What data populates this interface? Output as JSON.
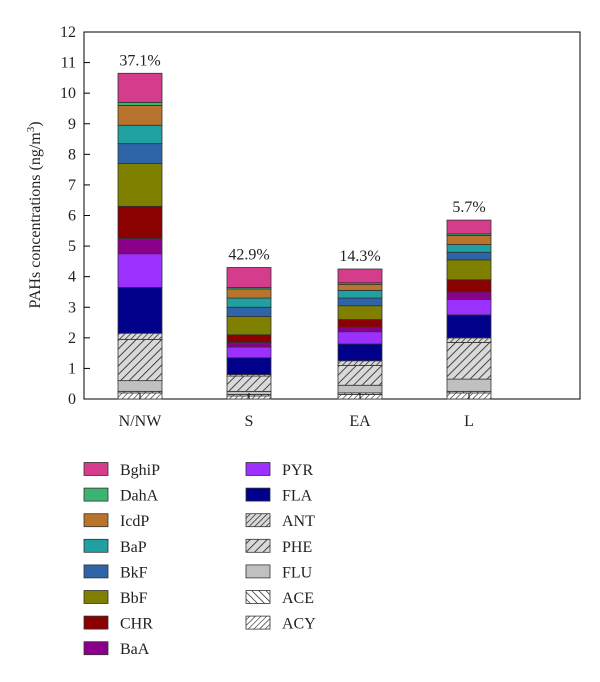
{
  "chart_data": {
    "type": "bar",
    "stacked": true,
    "ylabel": "PAHs concentrations (ng/m",
    "ylabel_sup": "3",
    "ylabel_close": ")",
    "ylim": [
      0,
      12
    ],
    "yticks": [
      "0",
      "1",
      "2",
      "3",
      "4",
      "5",
      "6",
      "7",
      "8",
      "9",
      "10",
      "11",
      "12"
    ],
    "categories": [
      "N/NW",
      "S",
      "EA",
      "L"
    ],
    "percent_labels": [
      "37.1%",
      "42.9%",
      "14.3%",
      "5.7%"
    ],
    "grid": false,
    "legend_position": "bottom",
    "series": [
      {
        "name": "ACY",
        "color": "#ffffff",
        "pattern": "fine-diag",
        "values": [
          0.2,
          0.1,
          0.15,
          0.2
        ]
      },
      {
        "name": "ACE",
        "color": "#ffffff",
        "pattern": "back-diag",
        "values": [
          0.05,
          0.05,
          0.05,
          0.05
        ]
      },
      {
        "name": "FLU",
        "color": "#c0c0c0",
        "pattern": "solid",
        "values": [
          0.35,
          0.1,
          0.25,
          0.4
        ]
      },
      {
        "name": "PHE",
        "color": "#d9d9d9",
        "pattern": "diag",
        "values": [
          1.35,
          0.5,
          0.65,
          1.2
        ]
      },
      {
        "name": "ANT",
        "color": "#d9d9d9",
        "pattern": "dense-diag",
        "values": [
          0.2,
          0.05,
          0.15,
          0.15
        ]
      },
      {
        "name": "FLA",
        "color": "#00008b",
        "pattern": "solid",
        "values": [
          1.5,
          0.55,
          0.55,
          0.75
        ]
      },
      {
        "name": "PYR",
        "color": "#9b30ff",
        "pattern": "solid",
        "values": [
          1.1,
          0.35,
          0.4,
          0.5
        ]
      },
      {
        "name": "BaA",
        "color": "#8b008b",
        "pattern": "solid",
        "values": [
          0.5,
          0.15,
          0.15,
          0.25
        ]
      },
      {
        "name": "CHR",
        "color": "#8b0000",
        "pattern": "solid",
        "values": [
          1.05,
          0.25,
          0.25,
          0.4
        ]
      },
      {
        "name": "BbF",
        "color": "#808000",
        "pattern": "solid",
        "values": [
          1.4,
          0.6,
          0.45,
          0.65
        ]
      },
      {
        "name": "BkF",
        "color": "#2e64a8",
        "pattern": "solid",
        "values": [
          0.65,
          0.3,
          0.25,
          0.25
        ]
      },
      {
        "name": "BaP",
        "color": "#20a0a0",
        "pattern": "solid",
        "values": [
          0.6,
          0.3,
          0.25,
          0.25
        ]
      },
      {
        "name": "IcdP",
        "color": "#b8732c",
        "pattern": "solid",
        "values": [
          0.65,
          0.3,
          0.2,
          0.3
        ]
      },
      {
        "name": "DahA",
        "color": "#3cb371",
        "pattern": "solid",
        "values": [
          0.1,
          0.05,
          0.05,
          0.05
        ]
      },
      {
        "name": "BghiP",
        "color": "#d63c8c",
        "pattern": "solid",
        "values": [
          0.95,
          0.65,
          0.45,
          0.45
        ]
      }
    ],
    "legend_col1": [
      "BghiP",
      "DahA",
      "IcdP",
      "BaP",
      "BkF",
      "BbF",
      "CHR",
      "BaA"
    ],
    "legend_col2": [
      "PYR",
      "FLA",
      "ANT",
      "PHE",
      "FLU",
      "ACE",
      "ACY"
    ]
  }
}
